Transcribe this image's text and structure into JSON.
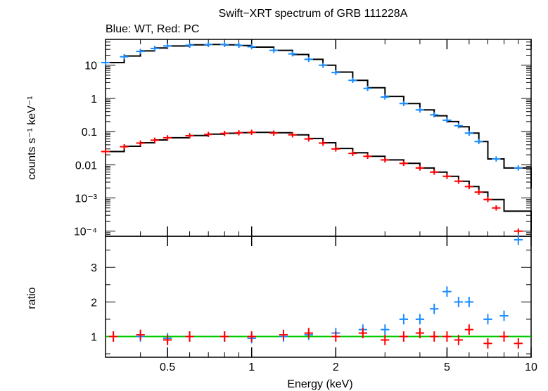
{
  "chart_data": {
    "type": "scatter",
    "title": "Swift−XRT spectrum of GRB 111228A",
    "subtitle": "Blue: WT, Red: PC",
    "xlabel": "Energy (keV)",
    "x_scale": "log",
    "xlim": [
      0.3,
      10
    ],
    "x_ticks": [
      {
        "value": 0.5,
        "label": "0.5"
      },
      {
        "value": 1,
        "label": "1"
      },
      {
        "value": 2,
        "label": "2"
      },
      {
        "value": 5,
        "label": "5"
      },
      {
        "value": 10,
        "label": "10"
      }
    ],
    "colors": {
      "wt": "#1a8cff",
      "pc": "#ff0000",
      "model": "#000000",
      "unity": "#00cc00"
    },
    "panels": [
      {
        "name": "spectrum",
        "ylabel": "counts s⁻¹ keV⁻¹",
        "y_scale": "log",
        "ylim": [
          7e-05,
          60
        ],
        "y_ticks": [
          {
            "value": 10,
            "label": "10"
          },
          {
            "value": 1,
            "label": "1"
          },
          {
            "value": 0.1,
            "label": "0.1"
          },
          {
            "value": 0.01,
            "label": "0.01"
          },
          {
            "value": 0.001,
            "label": "10⁻³"
          },
          {
            "value": 0.0001,
            "label": "10⁻⁴"
          }
        ],
        "series": [
          {
            "key": "wt",
            "x": [
              0.3,
              0.35,
              0.4,
              0.45,
              0.5,
              0.6,
              0.7,
              0.8,
              0.9,
              1.0,
              1.2,
              1.4,
              1.6,
              1.8,
              2.0,
              2.3,
              2.6,
              3.0,
              3.5,
              4.0,
              4.5,
              5.0,
              5.5,
              6.0,
              6.5,
              7.5,
              9.0
            ],
            "y": [
              12,
              18,
              26,
              32,
              38,
              40,
              42,
              42,
              40,
              36,
              28,
              22,
              15,
              10,
              6,
              3.5,
              2,
              1.1,
              0.7,
              0.45,
              0.32,
              0.22,
              0.15,
              0.09,
              0.05,
              0.015,
              0.008
            ]
          },
          {
            "key": "pc",
            "x": [
              0.3,
              0.35,
              0.4,
              0.45,
              0.5,
              0.6,
              0.7,
              0.8,
              0.9,
              1.0,
              1.2,
              1.4,
              1.6,
              1.8,
              2.0,
              2.3,
              2.6,
              3.0,
              3.5,
              4.0,
              4.5,
              5.0,
              5.5,
              6.0,
              6.5,
              7.0,
              7.5,
              9.0
            ],
            "y": [
              0.025,
              0.035,
              0.045,
              0.055,
              0.065,
              0.075,
              0.082,
              0.088,
              0.092,
              0.095,
              0.09,
              0.08,
              0.06,
              0.045,
              0.03,
              0.022,
              0.018,
              0.014,
              0.011,
              0.008,
              0.006,
              0.0045,
              0.0032,
              0.0022,
              0.0015,
              0.0009,
              0.0005,
              0.0001
            ]
          }
        ],
        "model": [
          {
            "key": "wt",
            "x": [
              0.3,
              0.35,
              0.4,
              0.45,
              0.5,
              0.6,
              0.7,
              0.8,
              0.9,
              1.0,
              1.2,
              1.4,
              1.6,
              1.8,
              2.0,
              2.3,
              2.6,
              3.0,
              3.5,
              4.0,
              4.5,
              5.0,
              5.5,
              6.0,
              6.5,
              7.0,
              8.0,
              10.0
            ],
            "y": [
              12,
              19,
              27,
              33,
              38,
              41,
              42,
              41,
              39,
              35,
              28,
              21,
              15,
              10,
              6.2,
              3.5,
              2.1,
              1.15,
              0.7,
              0.45,
              0.3,
              0.2,
              0.14,
              0.09,
              0.05,
              0.015,
              0.008,
              0.002
            ]
          },
          {
            "key": "pc",
            "x": [
              0.3,
              0.35,
              0.4,
              0.45,
              0.5,
              0.6,
              0.7,
              0.8,
              0.9,
              1.0,
              1.2,
              1.4,
              1.6,
              1.8,
              2.0,
              2.3,
              2.6,
              3.0,
              3.5,
              4.0,
              4.5,
              5.0,
              5.5,
              6.0,
              6.5,
              7.0,
              8.0,
              10.0
            ],
            "y": [
              0.025,
              0.036,
              0.046,
              0.056,
              0.065,
              0.076,
              0.084,
              0.089,
              0.093,
              0.095,
              0.092,
              0.08,
              0.062,
              0.046,
              0.031,
              0.023,
              0.018,
              0.014,
              0.011,
              0.008,
              0.006,
              0.0045,
              0.0032,
              0.0022,
              0.0015,
              0.0009,
              0.0004,
              0.0001
            ]
          }
        ]
      },
      {
        "name": "ratio",
        "ylabel": "ratio",
        "y_scale": "linear",
        "ylim": [
          0.4,
          3.9
        ],
        "y_ticks": [
          {
            "value": 1,
            "label": "1"
          },
          {
            "value": 2,
            "label": "2"
          },
          {
            "value": 3,
            "label": "3"
          }
        ],
        "unity_line": 1,
        "series": [
          {
            "key": "wt",
            "x": [
              0.32,
              0.4,
              0.5,
              0.6,
              0.8,
              1.0,
              1.3,
              1.6,
              2.0,
              2.5,
              3.0,
              3.5,
              4.0,
              4.5,
              5.0,
              5.5,
              6.0,
              7.0,
              8.0,
              9.0
            ],
            "y": [
              1.0,
              1.0,
              0.95,
              1.0,
              1.0,
              0.95,
              1.0,
              1.05,
              1.1,
              1.2,
              1.2,
              1.5,
              1.5,
              1.8,
              2.3,
              2.0,
              2.0,
              1.5,
              1.6,
              3.8
            ]
          },
          {
            "key": "pc",
            "x": [
              0.32,
              0.4,
              0.5,
              0.6,
              0.8,
              1.0,
              1.3,
              1.6,
              2.0,
              2.5,
              3.0,
              3.5,
              4.0,
              4.5,
              5.0,
              5.5,
              6.0,
              7.0,
              8.0,
              9.0
            ],
            "y": [
              1.0,
              1.05,
              0.9,
              1.0,
              1.0,
              1.0,
              1.05,
              1.1,
              1.0,
              1.1,
              0.9,
              1.0,
              1.1,
              1.0,
              1.0,
              0.9,
              1.2,
              0.8,
              1.0,
              0.8
            ]
          }
        ]
      }
    ]
  }
}
